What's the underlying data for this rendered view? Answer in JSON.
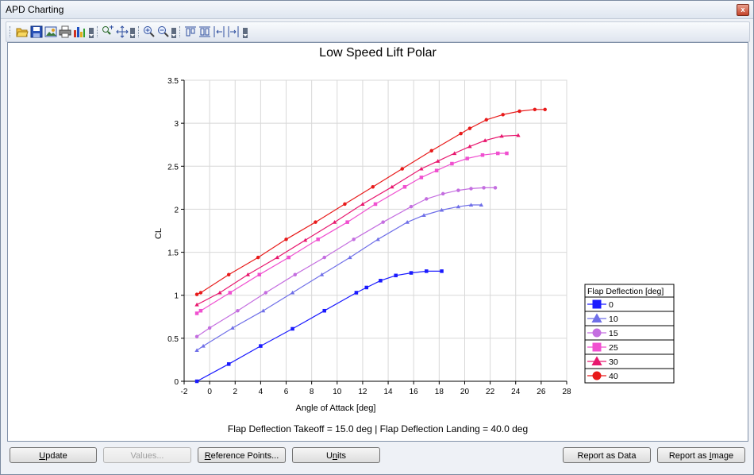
{
  "window": {
    "title": "APD Charting",
    "close_glyph": "x"
  },
  "toolbar": {
    "icons": [
      "open-folder-icon",
      "save-icon",
      "export-image-icon",
      "print-icon",
      "chart-color-icon",
      "zoom-window-icon",
      "pan-crosshair-icon",
      "zoom-in-icon",
      "zoom-out-icon",
      "align-tops-icon",
      "align-bottoms-icon",
      "stretch-left-icon",
      "stretch-right-icon"
    ]
  },
  "footer_note": "Flap Deflection Takeoff = 15.0 deg | Flap Deflection Landing = 40.0 deg",
  "buttons": {
    "update": {
      "pre": "",
      "key": "U",
      "post": "pdate"
    },
    "values": {
      "label": "Values..."
    },
    "reference_points": {
      "pre": "",
      "key": "R",
      "post": "eference Points..."
    },
    "units": {
      "pre": "U",
      "key": "n",
      "post": "its"
    },
    "report_data": {
      "label": "Report as Data"
    },
    "report_image": {
      "pre": "Report as ",
      "key": "I",
      "post": "mage"
    }
  },
  "chart_data": {
    "type": "line",
    "title": "Low Speed Lift Polar",
    "xlabel": "Angle of Attack [deg]",
    "ylabel": "CL",
    "xlim": [
      -2,
      28
    ],
    "ylim": [
      0,
      3.5
    ],
    "xticks": [
      -2,
      0,
      2,
      4,
      6,
      8,
      10,
      12,
      14,
      16,
      18,
      20,
      22,
      24,
      26,
      28
    ],
    "yticks": [
      0,
      0.5,
      1,
      1.5,
      2,
      2.5,
      3,
      3.5
    ],
    "ytick_labels": [
      "0",
      "0.5",
      "1",
      "1.5",
      "2",
      "2.5",
      "3",
      "3.5"
    ],
    "grid": true,
    "legend": {
      "title": "Flap Deflection [deg]",
      "position": "right"
    },
    "series": [
      {
        "name": "0",
        "color": "#1a1aff",
        "marker": "square",
        "x": [
          -1,
          1.5,
          4,
          6.5,
          9,
          11.5,
          12.3,
          13.4,
          14.6,
          15.8,
          17,
          18.2
        ],
        "y": [
          0,
          0.2,
          0.41,
          0.61,
          0.82,
          1.03,
          1.09,
          1.17,
          1.23,
          1.26,
          1.28,
          1.28
        ]
      },
      {
        "name": "10",
        "color": "#6f6fe8",
        "marker": "triangle",
        "x": [
          -1,
          -0.5,
          1.8,
          4.2,
          6.5,
          8.8,
          11,
          13.2,
          15.5,
          16.8,
          18.2,
          19.5,
          20.5,
          21.3
        ],
        "y": [
          0.36,
          0.41,
          0.62,
          0.82,
          1.03,
          1.24,
          1.44,
          1.65,
          1.85,
          1.93,
          1.99,
          2.03,
          2.05,
          2.05
        ]
      },
      {
        "name": "15",
        "color": "#c46ee0",
        "marker": "circle",
        "x": [
          -1,
          0,
          2.2,
          4.4,
          6.7,
          9,
          11.3,
          13.6,
          15.8,
          17,
          18.3,
          19.5,
          20.5,
          21.5,
          22.4
        ],
        "y": [
          0.52,
          0.62,
          0.82,
          1.03,
          1.24,
          1.44,
          1.65,
          1.85,
          2.03,
          2.12,
          2.18,
          2.22,
          2.24,
          2.25,
          2.25
        ]
      },
      {
        "name": "25",
        "color": "#f050d0",
        "marker": "square",
        "x": [
          -1,
          -0.7,
          1.6,
          3.9,
          6.2,
          8.5,
          10.8,
          13,
          15.3,
          16.6,
          17.8,
          19,
          20.2,
          21.4,
          22.6,
          23.3
        ],
        "y": [
          0.79,
          0.82,
          1.03,
          1.24,
          1.44,
          1.65,
          1.85,
          2.06,
          2.26,
          2.37,
          2.45,
          2.53,
          2.59,
          2.63,
          2.65,
          2.65
        ]
      },
      {
        "name": "30",
        "color": "#e8176e",
        "marker": "triangle",
        "x": [
          -1,
          0.8,
          3,
          5.3,
          7.5,
          9.8,
          12,
          14.3,
          16.6,
          17.9,
          19.2,
          20.4,
          21.6,
          22.9,
          24.2
        ],
        "y": [
          0.89,
          1.03,
          1.24,
          1.44,
          1.64,
          1.85,
          2.06,
          2.26,
          2.47,
          2.56,
          2.65,
          2.73,
          2.8,
          2.85,
          2.86
        ]
      },
      {
        "name": "40",
        "color": "#e81a1a",
        "marker": "circle",
        "x": [
          -1,
          -0.7,
          1.5,
          3.8,
          6,
          8.3,
          10.6,
          12.8,
          15.1,
          17.4,
          19.7,
          20.4,
          21.7,
          23,
          24.3,
          25.5,
          26.3
        ],
        "y": [
          1.01,
          1.03,
          1.24,
          1.44,
          1.65,
          1.85,
          2.06,
          2.26,
          2.47,
          2.68,
          2.88,
          2.94,
          3.04,
          3.1,
          3.14,
          3.16,
          3.16
        ]
      }
    ]
  }
}
